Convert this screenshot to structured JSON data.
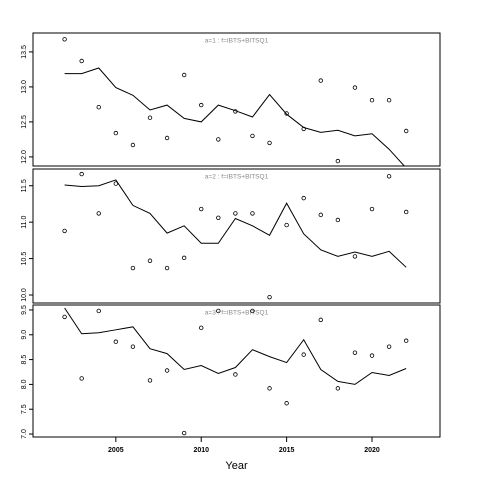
{
  "chart_data": [
    {
      "type": "line",
      "title": "a=1  :  f=IBTS+BITSQ1",
      "x": [
        2002,
        2003,
        2004,
        2005,
        2006,
        2007,
        2008,
        2009,
        2010,
        2011,
        2012,
        2013,
        2014,
        2015,
        2016,
        2017,
        2018,
        2019,
        2020,
        2021,
        2022
      ],
      "points": [
        13.68,
        13.37,
        12.71,
        12.34,
        12.17,
        12.56,
        12.27,
        13.17,
        12.74,
        12.25,
        12.65,
        12.3,
        12.2,
        12.62,
        12.4,
        13.09,
        11.94,
        12.99,
        12.81,
        12.81,
        12.37
      ],
      "line": [
        13.19,
        13.19,
        13.27,
        12.99,
        12.88,
        12.67,
        12.74,
        12.55,
        12.5,
        12.74,
        12.66,
        12.57,
        12.89,
        12.61,
        12.42,
        12.35,
        12.38,
        12.3,
        12.33,
        12.11,
        11.84
      ],
      "xlim": [
        2000.15,
        2023.98
      ],
      "ylim": [
        11.87,
        13.77
      ],
      "yticks": [
        {
          "value": 12,
          "label": "12.0"
        },
        12.5,
        {
          "value": 13,
          "label": "13.0"
        },
        13.5
      ]
    },
    {
      "type": "line",
      "title": "a=2  :  f=IBTS+BITSQ1",
      "x": [
        2002,
        2003,
        2004,
        2005,
        2006,
        2007,
        2008,
        2009,
        2010,
        2011,
        2012,
        2013,
        2014,
        2015,
        2016,
        2017,
        2018,
        2019,
        2020,
        2021,
        2022
      ],
      "points": [
        10.88,
        11.66,
        11.12,
        11.53,
        10.37,
        10.47,
        10.37,
        10.51,
        11.18,
        11.06,
        11.12,
        11.12,
        9.97,
        10.96,
        11.33,
        11.1,
        11.03,
        10.53,
        11.18,
        11.63,
        11.14
      ],
      "line": [
        11.51,
        11.49,
        11.5,
        11.58,
        11.23,
        11.12,
        10.85,
        10.95,
        10.71,
        10.71,
        11.05,
        10.95,
        10.82,
        11.26,
        10.84,
        10.62,
        10.53,
        10.59,
        10.53,
        10.6,
        10.38
      ],
      "xlim": [
        2000.15,
        2023.98
      ],
      "ylim": [
        9.89,
        11.73
      ],
      "yticks": [
        {
          "value": 10,
          "label": "10.0"
        },
        10.5,
        {
          "value": 11,
          "label": "11.0"
        },
        11.5
      ]
    },
    {
      "type": "line",
      "title": "a=3  :  f=IBTS+BITSQ1",
      "x": [
        2002,
        2003,
        2004,
        2005,
        2006,
        2007,
        2008,
        2009,
        2010,
        2011,
        2012,
        2013,
        2014,
        2015,
        2016,
        2017,
        2018,
        2019,
        2020,
        2021,
        2022
      ],
      "points": [
        9.36,
        8.12,
        9.48,
        8.86,
        8.76,
        8.08,
        8.28,
        7.02,
        9.14,
        9.48,
        8.2,
        9.48,
        7.92,
        7.62,
        8.6,
        9.3,
        7.92,
        8.64,
        8.58,
        8.76,
        8.88
      ],
      "line": [
        9.54,
        9.02,
        9.04,
        9.1,
        9.16,
        8.72,
        8.62,
        8.3,
        8.38,
        8.22,
        8.34,
        8.7,
        8.56,
        8.44,
        8.9,
        8.3,
        8.06,
        8,
        8.24,
        8.18,
        8.32
      ],
      "xlim": [
        2000.15,
        2023.98
      ],
      "ylim": [
        6.94,
        9.6
      ],
      "yticks": [
        {
          "value": 7,
          "label": "7.0"
        },
        7.5,
        {
          "value": 8,
          "label": "8.0"
        },
        8.5,
        {
          "value": 9,
          "label": "9.0"
        },
        9.5
      ],
      "xticks": [
        2005,
        2010,
        2015,
        2020
      ],
      "xlabel": "Year"
    }
  ]
}
